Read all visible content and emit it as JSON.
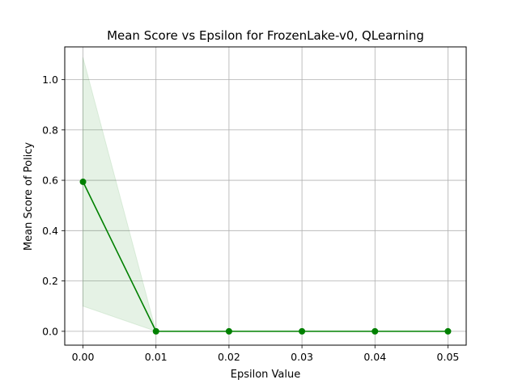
{
  "chart_data": {
    "type": "line",
    "title": "Mean Score vs Epsilon for FrozenLake-v0, QLearning",
    "xlabel": "Epsilon Value",
    "ylabel": "Mean Score of Policy",
    "x": [
      0.0,
      0.01,
      0.02,
      0.03,
      0.04,
      0.05
    ],
    "x_tick_labels": [
      "0.00",
      "0.01",
      "0.02",
      "0.03",
      "0.04",
      "0.05"
    ],
    "y_ticks": [
      0.0,
      0.2,
      0.4,
      0.6,
      0.8,
      1.0
    ],
    "y_tick_labels": [
      "0.0",
      "0.2",
      "0.4",
      "0.6",
      "0.8",
      "1.0"
    ],
    "xlim": [
      -0.0025,
      0.0525
    ],
    "ylim": [
      -0.055,
      1.13
    ],
    "grid": true,
    "series": [
      {
        "values": [
          0.594,
          0.0,
          0.0,
          0.0,
          0.0,
          0.0
        ],
        "band_upper": [
          1.088,
          0.0,
          0.0,
          0.0,
          0.0,
          0.0
        ],
        "band_lower": [
          0.1,
          0.0,
          0.0,
          0.0,
          0.0,
          0.0
        ],
        "color": "#008000",
        "band_color": "#008000",
        "band_opacity": 0.1,
        "marker": "circle"
      }
    ]
  }
}
